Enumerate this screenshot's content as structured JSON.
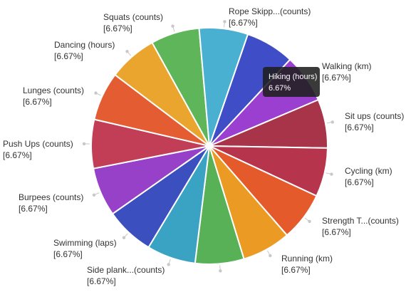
{
  "chart_data": {
    "type": "pie",
    "start_angle_deg": 0,
    "slices": [
      {
        "label": "Hiking (hours)",
        "value": 1,
        "percent_label": "[6.67%]",
        "color": "#9b3fd1"
      },
      {
        "label": "Walking (km)",
        "value": 1,
        "percent_label": "[6.67%]",
        "color": "#a8344a"
      },
      {
        "label": "Sit ups (counts)",
        "value": 1,
        "percent_label": "[6.67%]",
        "color": "#b6354c"
      },
      {
        "label": "Cycling (km)",
        "value": 1,
        "percent_label": "[6.67%]",
        "color": "#e55a2a"
      },
      {
        "label": "Strength T...(counts)",
        "value": 1,
        "percent_label": "[6.67%]",
        "color": "#eb9b24"
      },
      {
        "label": "Running (km)",
        "value": 1,
        "percent_label": "[6.67%]",
        "color": "#58b057"
      },
      {
        "label": "Side plank...(counts)",
        "value": 1,
        "percent_label": "[6.67%]",
        "color": "#3aa2c2"
      },
      {
        "label": "Swimming (laps)",
        "value": 1,
        "percent_label": "[6.67%]",
        "color": "#3c4fbf"
      },
      {
        "label": "Burpees (counts)",
        "value": 1,
        "percent_label": "[6.67%]",
        "color": "#9641c8"
      },
      {
        "label": "Push Ups (counts)",
        "value": 1,
        "percent_label": "[6.67%]",
        "color": "#c23e57"
      },
      {
        "label": "Lunges (counts)",
        "value": 1,
        "percent_label": "[6.67%]",
        "color": "#e35c32"
      },
      {
        "label": "Dancing (hours)",
        "value": 1,
        "percent_label": "[6.67%]",
        "color": "#eaa52e"
      },
      {
        "label": "Squats (counts)",
        "value": 1,
        "percent_label": "[6.67%]",
        "color": "#5fb65a"
      },
      {
        "label": "Rope Skipp...(counts)",
        "value": 1,
        "percent_label": "[6.67%]",
        "color": "#49b0d1"
      },
      {
        "label": "Walking (km)",
        "value": 1,
        "percent_label": "[6.67%]",
        "color": "#3f4ec6"
      }
    ],
    "tooltip": {
      "title": "Hiking (hours)",
      "value": "6.67%"
    }
  }
}
